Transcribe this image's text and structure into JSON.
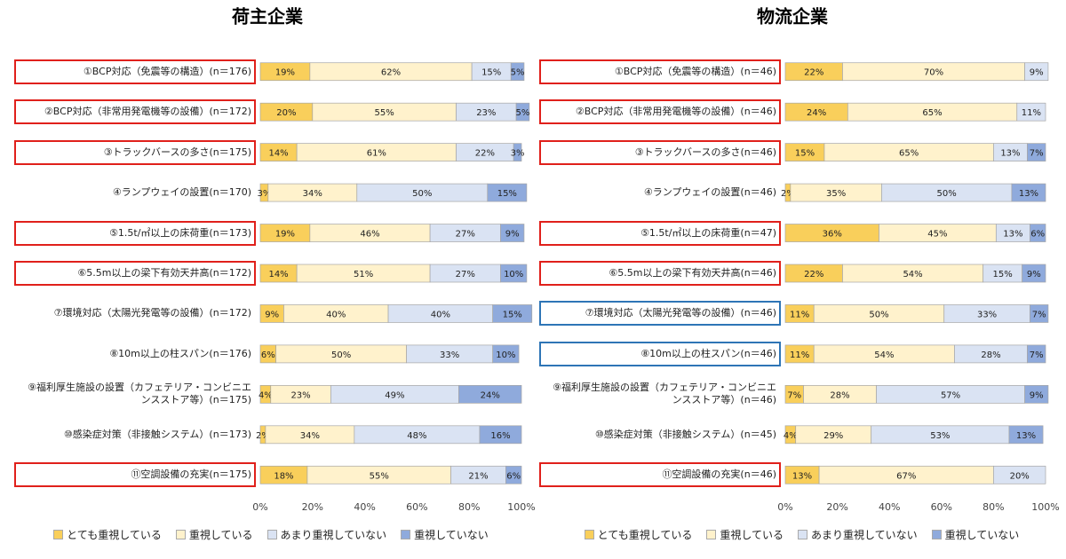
{
  "chart_data": [
    {
      "type": "bar",
      "orientation": "horizontal",
      "stacked": true,
      "title": "荷主企業",
      "categories": [
        "①BCP対応（免震等の構造）(n＝176)",
        "②BCP対応（非常用発電機等の設備）(n＝172)",
        "③トラックバースの多さ(n＝175)",
        "④ランプウェイの設置(n＝170)",
        "⑤1.5t/㎡以上の床荷重(n＝173)",
        "⑥5.5m以上の梁下有効天井高(n＝172)",
        "⑦環境対応（太陽光発電等の設備）(n＝172)",
        "⑧10m以上の柱スパン(n＝176)",
        "⑨福利厚生施設の設置（カフェテリア・コンビニエンスストア等）(n＝175)",
        "⑩感染症対策（非接触システム）(n＝173)",
        "⑪空調設備の充実(n＝175)"
      ],
      "category_box_colors": [
        "#e0201b",
        "#e0201b",
        "#e0201b",
        null,
        "#e0201b",
        "#e0201b",
        null,
        null,
        null,
        null,
        "#e0201b"
      ],
      "series": [
        {
          "name": "とても重視している",
          "color": "#f9cf5b",
          "values": [
            19,
            20,
            14,
            3,
            19,
            14,
            9,
            6,
            4,
            2,
            18
          ],
          "value_labels": [
            "19%",
            "20%",
            "14%",
            "3%",
            "19%",
            "14%",
            "9%",
            "6%",
            "4%",
            "2%",
            "18%"
          ]
        },
        {
          "name": "重視している",
          "color": "#fff2cc",
          "values": [
            62,
            55,
            61,
            34,
            46,
            51,
            40,
            50,
            23,
            34,
            55
          ],
          "value_labels": [
            "62%",
            "55%",
            "61%",
            "34%",
            "46%",
            "51%",
            "40%",
            "50%",
            "23%",
            "34%",
            "55%"
          ]
        },
        {
          "name": "あまり重視していない",
          "color": "#dae3f3",
          "values": [
            15,
            23,
            22,
            50,
            27,
            27,
            40,
            33,
            49,
            48,
            21
          ],
          "value_labels": [
            "15%",
            "23%",
            "22%",
            "50%",
            "27%",
            "27%",
            "40%",
            "33%",
            "49%",
            "48%",
            "21%"
          ]
        },
        {
          "name": "重視していない",
          "color": "#8faadc",
          "values": [
            5,
            5,
            3,
            15,
            9,
            10,
            15,
            10,
            24,
            16,
            6
          ],
          "value_labels": [
            "5%",
            "5%",
            "3%",
            "15%",
            "9%",
            "10%",
            "15%",
            "10%",
            "24%",
            "16%",
            "6%"
          ]
        }
      ],
      "xlim": [
        0,
        100
      ],
      "xticks": [
        {
          "value": 0,
          "label": "0%"
        },
        {
          "value": 20,
          "label": "20%"
        },
        {
          "value": 40,
          "label": "40%"
        },
        {
          "value": 60,
          "label": "60%"
        },
        {
          "value": 80,
          "label": "80%"
        },
        {
          "value": 100,
          "label": "100%"
        }
      ],
      "grid": false,
      "legend": "bottom"
    },
    {
      "type": "bar",
      "orientation": "horizontal",
      "stacked": true,
      "title": "物流企業",
      "categories": [
        "①BCP対応（免震等の構造）(n＝46)",
        "②BCP対応（非常用発電機等の設備）(n＝46)",
        "③トラックバースの多さ(n＝46)",
        "④ランプウェイの設置(n＝46)",
        "⑤1.5t/㎡以上の床荷重(n＝47)",
        "⑥5.5m以上の梁下有効天井高(n＝46)",
        "⑦環境対応（太陽光発電等の設備）(n＝46)",
        "⑧10m以上の柱スパン(n＝46)",
        "⑨福利厚生施設の設置（カフェテリア・コンビニエンスストア等）(n＝46)",
        "⑩感染症対策（非接触システム）(n＝45)",
        "⑪空調設備の充実(n＝46)"
      ],
      "category_box_colors": [
        "#e0201b",
        "#e0201b",
        "#e0201b",
        null,
        "#e0201b",
        "#e0201b",
        "#2e75b6",
        "#2e75b6",
        null,
        null,
        "#e0201b"
      ],
      "series": [
        {
          "name": "とても重視している",
          "color": "#f9cf5b",
          "values": [
            22,
            24,
            15,
            2,
            36,
            22,
            11,
            11,
            7,
            4,
            13
          ],
          "value_labels": [
            "22%",
            "24%",
            "15%",
            "2%",
            "36%",
            "22%",
            "11%",
            "11%",
            "7%",
            "4%",
            "13%"
          ]
        },
        {
          "name": "重視している",
          "color": "#fff2cc",
          "values": [
            70,
            65,
            65,
            35,
            45,
            54,
            50,
            54,
            28,
            29,
            67
          ],
          "value_labels": [
            "70%",
            "65%",
            "65%",
            "35%",
            "45%",
            "54%",
            "50%",
            "54%",
            "28%",
            "29%",
            "67%"
          ]
        },
        {
          "name": "あまり重視していない",
          "color": "#dae3f3",
          "values": [
            9,
            11,
            13,
            50,
            13,
            15,
            33,
            28,
            57,
            53,
            20
          ],
          "value_labels": [
            "9%",
            "11%",
            "13%",
            "50%",
            "13%",
            "15%",
            "33%",
            "28%",
            "57%",
            "53%",
            "20%"
          ]
        },
        {
          "name": "重視していない",
          "color": "#8faadc",
          "values": [
            null,
            null,
            7,
            13,
            6,
            9,
            7,
            7,
            9,
            13,
            null
          ],
          "value_labels": [
            null,
            null,
            "7%",
            "13%",
            "6%",
            "9%",
            "7%",
            "7%",
            "9%",
            "13%",
            null
          ]
        }
      ],
      "xlim": [
        0,
        100
      ],
      "xticks": [
        {
          "value": 0,
          "label": "0%"
        },
        {
          "value": 20,
          "label": "20%"
        },
        {
          "value": 40,
          "label": "40%"
        },
        {
          "value": 60,
          "label": "60%"
        },
        {
          "value": 80,
          "label": "80%"
        },
        {
          "value": 100,
          "label": "100%"
        }
      ],
      "grid": false,
      "legend": "bottom"
    }
  ]
}
